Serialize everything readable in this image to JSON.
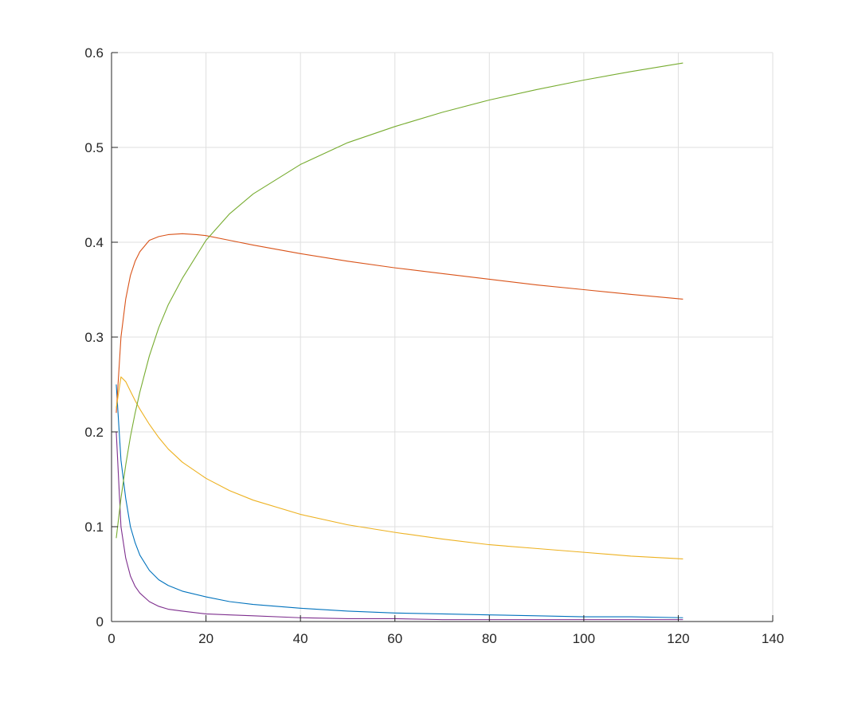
{
  "chart_data": {
    "type": "line",
    "title": "",
    "xlabel": "",
    "ylabel": "",
    "xlim": [
      0,
      140
    ],
    "ylim": [
      0,
      0.6
    ],
    "xticks": [
      0,
      20,
      40,
      60,
      80,
      100,
      120,
      140
    ],
    "yticks": [
      0,
      0.1,
      0.2,
      0.3,
      0.4,
      0.5,
      0.6
    ],
    "xtick_labels": [
      "0",
      "20",
      "40",
      "60",
      "80",
      "100",
      "120",
      "140"
    ],
    "ytick_labels": [
      "0",
      "0.1",
      "0.2",
      "0.3",
      "0.4",
      "0.5",
      "0.6"
    ],
    "grid": true,
    "legend": "none",
    "series": [
      {
        "color": "#0072BD",
        "x": [
          1,
          2,
          3,
          4,
          5,
          6,
          8,
          10,
          12,
          15,
          20,
          25,
          30,
          40,
          50,
          60,
          70,
          80,
          90,
          100,
          110,
          121
        ],
        "y": [
          0.25,
          0.17,
          0.13,
          0.1,
          0.083,
          0.07,
          0.054,
          0.044,
          0.038,
          0.032,
          0.026,
          0.021,
          0.018,
          0.014,
          0.011,
          0.009,
          0.008,
          0.007,
          0.006,
          0.005,
          0.005,
          0.004
        ]
      },
      {
        "color": "#D95319",
        "x": [
          1,
          2,
          3,
          4,
          5,
          6,
          8,
          10,
          12,
          15,
          18,
          20,
          25,
          30,
          40,
          50,
          60,
          70,
          80,
          90,
          100,
          110,
          121
        ],
        "y": [
          0.22,
          0.3,
          0.34,
          0.365,
          0.38,
          0.39,
          0.402,
          0.406,
          0.408,
          0.409,
          0.408,
          0.407,
          0.402,
          0.397,
          0.388,
          0.38,
          0.373,
          0.367,
          0.361,
          0.355,
          0.35,
          0.345,
          0.34
        ]
      },
      {
        "color": "#EDB120",
        "x": [
          1,
          2,
          3,
          4,
          5,
          6,
          8,
          10,
          12,
          15,
          20,
          25,
          30,
          40,
          50,
          60,
          70,
          80,
          90,
          100,
          110,
          121
        ],
        "y": [
          0.225,
          0.258,
          0.253,
          0.243,
          0.233,
          0.224,
          0.208,
          0.194,
          0.182,
          0.168,
          0.151,
          0.138,
          0.128,
          0.113,
          0.102,
          0.094,
          0.087,
          0.081,
          0.077,
          0.073,
          0.069,
          0.066
        ]
      },
      {
        "color": "#7E2F8E",
        "x": [
          1,
          2,
          3,
          4,
          5,
          6,
          8,
          10,
          12,
          15,
          20,
          25,
          30,
          40,
          50,
          60,
          70,
          80,
          90,
          100,
          110,
          121
        ],
        "y": [
          0.2,
          0.1,
          0.067,
          0.048,
          0.037,
          0.03,
          0.021,
          0.016,
          0.013,
          0.011,
          0.008,
          0.007,
          0.006,
          0.004,
          0.003,
          0.003,
          0.002,
          0.002,
          0.002,
          0.002,
          0.002,
          0.002
        ]
      },
      {
        "color": "#77AC30",
        "x": [
          1,
          2,
          3,
          4,
          5,
          6,
          8,
          10,
          12,
          15,
          20,
          25,
          30,
          40,
          50,
          60,
          70,
          80,
          90,
          100,
          110,
          121
        ],
        "y": [
          0.088,
          0.13,
          0.165,
          0.195,
          0.22,
          0.242,
          0.28,
          0.31,
          0.334,
          0.362,
          0.402,
          0.43,
          0.451,
          0.482,
          0.505,
          0.522,
          0.537,
          0.55,
          0.561,
          0.571,
          0.58,
          0.589
        ]
      }
    ]
  }
}
